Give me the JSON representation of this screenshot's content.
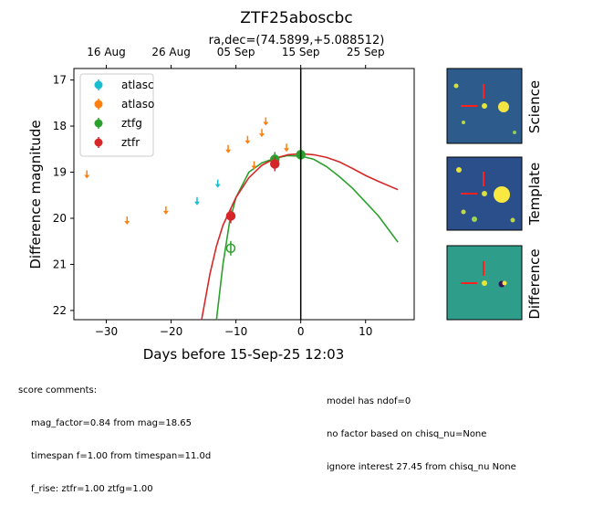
{
  "figure": {
    "title": "ZTF25aboscbc",
    "subtitle": "ra,dec=(74.5899,+5.088512)"
  },
  "chart_data": {
    "type": "scatter",
    "title": "ZTF25aboscbc",
    "subtitle": "ra,dec=(74.5899,+5.088512)",
    "xlabel": "Days before 15-Sep-25 12:03",
    "ylabel": "Difference magnitude",
    "xlim": [
      -35,
      17.5
    ],
    "ylim": [
      22.2,
      16.75
    ],
    "y_inverted": true,
    "x_ticks": [
      -30,
      -20,
      -10,
      0,
      10
    ],
    "y_ticks": [
      17,
      18,
      19,
      20,
      21,
      22
    ],
    "top_axis": {
      "labels": [
        "16 Aug",
        "26 Aug",
        "05 Sep",
        "15 Sep",
        "25 Sep"
      ],
      "positions": [
        -30,
        -20,
        -10,
        0,
        10
      ]
    },
    "legend_position": "upper-left",
    "vertical_line_x": 0,
    "series": [
      {
        "name": "atlasc",
        "color": "#17becf",
        "kind": "upper_limit",
        "points": [
          [
            -16,
            19.58
          ],
          [
            -12.8,
            19.2
          ]
        ]
      },
      {
        "name": "atlaso",
        "color": "#ff7f0e",
        "kind": "upper_limit",
        "points": [
          [
            -33,
            19.0
          ],
          [
            -26.8,
            20.0
          ],
          [
            -20.8,
            19.78
          ],
          [
            -11.2,
            18.45
          ],
          [
            -8.2,
            18.25
          ],
          [
            -7.2,
            18.8
          ],
          [
            -6,
            18.1
          ],
          [
            -5.4,
            17.85
          ],
          [
            -2.2,
            18.42
          ]
        ]
      },
      {
        "name": "ztfg",
        "color": "#2ca02c",
        "kind": "detection",
        "points": [
          [
            -10.8,
            20.65,
            "open"
          ],
          [
            0,
            18.62,
            "filled"
          ],
          [
            -4,
            18.72,
            "filled"
          ]
        ]
      },
      {
        "name": "ztfr",
        "color": "#d62728",
        "kind": "detection",
        "points": [
          [
            -10.8,
            19.95
          ],
          [
            -4,
            18.82
          ]
        ]
      }
    ],
    "model_curves": [
      {
        "name": "ztfg",
        "color": "#2ca02c",
        "points": [
          [
            -13,
            22.2
          ],
          [
            -12,
            21.0
          ],
          [
            -11,
            20.1
          ],
          [
            -10,
            19.55
          ],
          [
            -8,
            19.0
          ],
          [
            -6,
            18.8
          ],
          [
            -4,
            18.7
          ],
          [
            -2,
            18.64
          ],
          [
            0,
            18.65
          ],
          [
            2,
            18.72
          ],
          [
            4,
            18.88
          ],
          [
            6,
            19.1
          ],
          [
            8,
            19.35
          ],
          [
            10,
            19.65
          ],
          [
            12,
            19.95
          ],
          [
            15,
            20.52
          ]
        ]
      },
      {
        "name": "ztfr",
        "color": "#d62728",
        "points": [
          [
            -15.3,
            22.2
          ],
          [
            -14,
            21.2
          ],
          [
            -13,
            20.6
          ],
          [
            -12,
            20.15
          ],
          [
            -10,
            19.55
          ],
          [
            -8,
            19.12
          ],
          [
            -6,
            18.85
          ],
          [
            -4,
            18.7
          ],
          [
            -2,
            18.62
          ],
          [
            0,
            18.6
          ],
          [
            2,
            18.62
          ],
          [
            4,
            18.68
          ],
          [
            6,
            18.78
          ],
          [
            8,
            18.92
          ],
          [
            10,
            19.07
          ],
          [
            12,
            19.2
          ],
          [
            15,
            19.38
          ]
        ]
      }
    ]
  },
  "thumbnails": [
    {
      "label": "Science"
    },
    {
      "label": "Template"
    },
    {
      "label": "Difference"
    }
  ],
  "comments_left": {
    "title": "score comments:",
    "line1": "mag_factor=0.84 from mag=18.65",
    "line2": "timespan f=1.00 from timespan=11.0d",
    "line3": "f_rise: ztfr=1.00 ztfg=1.00"
  },
  "comments_right": {
    "line1": "model has ndof=0",
    "line2": "no factor based on chisq_nu=None",
    "line3": "ignore interest 27.45 from chisq_nu None"
  }
}
